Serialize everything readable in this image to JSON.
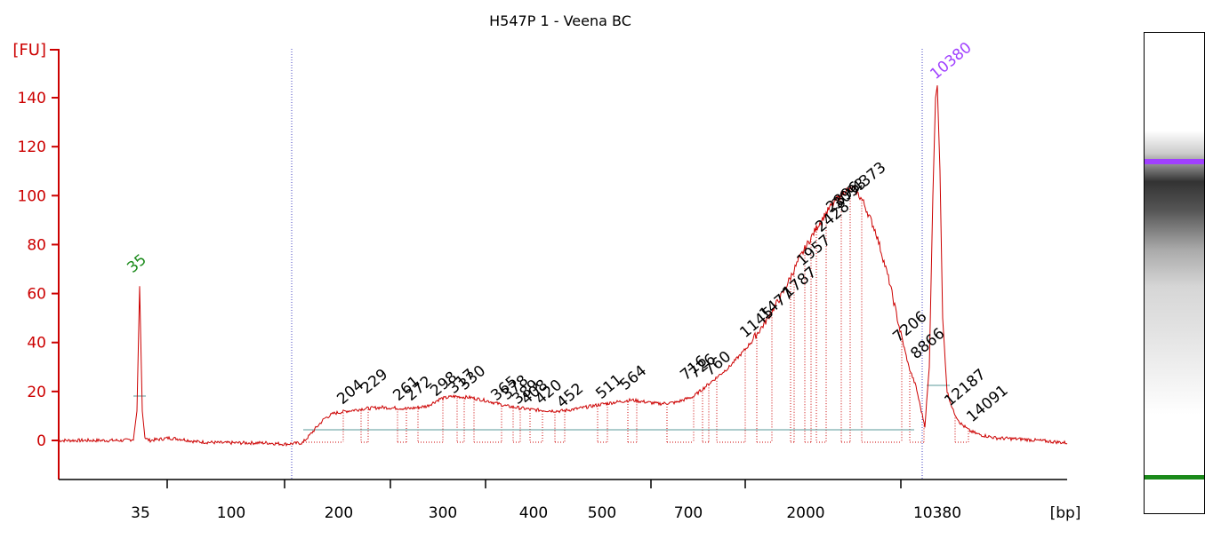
{
  "title": "H547P 1 - Veena BC",
  "chart_data": {
    "type": "line",
    "title": "H547P 1 - Veena BC",
    "ylabel": "[FU]",
    "xlabel": "[bp]",
    "y_ticks": [
      "0",
      "20",
      "40",
      "60",
      "80",
      "100",
      "120",
      "140"
    ],
    "x_ticks": [
      "35",
      "100",
      "200",
      "300",
      "400",
      "500",
      "700",
      "2000",
      "10380"
    ],
    "ylim": [
      -15,
      150
    ],
    "markers": [
      {
        "label": "35",
        "peak": 63,
        "color": "#1a8a1a"
      },
      {
        "label": "10380",
        "peak": 145,
        "color": "#a040ff"
      }
    ],
    "peak_labels": [
      "204",
      "229",
      "261",
      "272",
      "298",
      "317",
      "330",
      "365",
      "378",
      "389",
      "408",
      "420",
      "452",
      "511",
      "564",
      "716",
      "726",
      "760",
      "1145",
      "1477",
      "1787",
      "1957",
      "2428",
      "2896",
      "3093",
      "4373",
      "7206",
      "8866",
      "12187",
      "14091"
    ],
    "grid": false,
    "legend": "none",
    "colors": {
      "trace": "#cc0000",
      "axis": "#cc0000",
      "lower_marker": "#1a8a1a",
      "upper_marker": "#a040ff",
      "baseline": "#5a9a9a",
      "divider": "#4040c0"
    }
  },
  "gel": {
    "upper_band_color": "#a040ff",
    "lower_band_color": "#1a8a1a"
  }
}
